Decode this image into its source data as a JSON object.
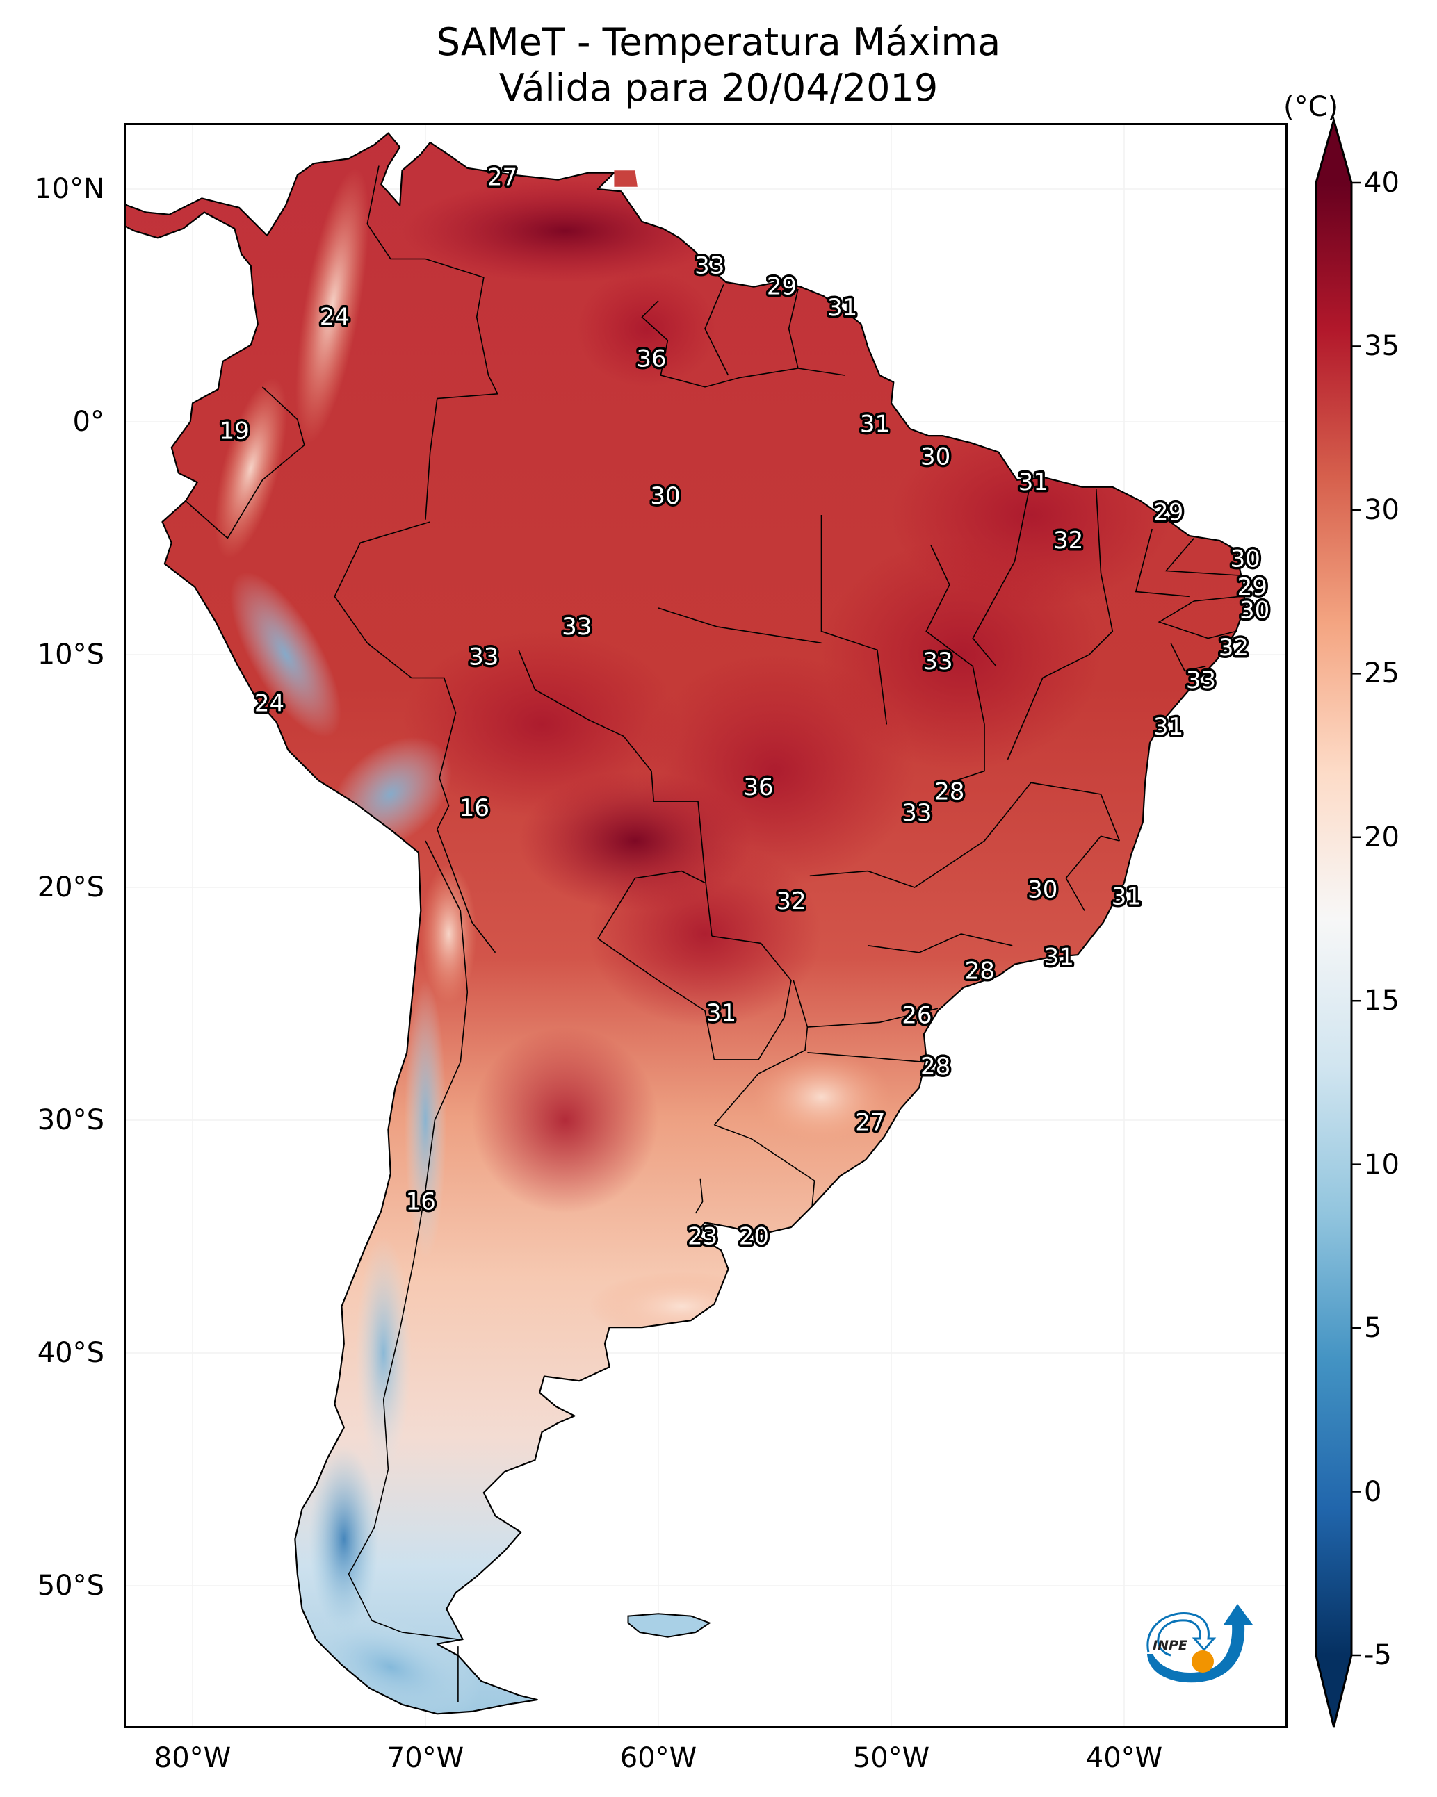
{
  "title": {
    "line1": "SAMeT - Temperatura Máxima",
    "line2": "Válida para 20/04/2019"
  },
  "map": {
    "projection": "PlateCarree",
    "extent": {
      "lon_min": -83,
      "lon_max": -33,
      "lat_min": -56,
      "lat_max": 13
    },
    "y_ticks": [
      {
        "lat": 10,
        "label": "10°N"
      },
      {
        "lat": 0,
        "label": "0°"
      },
      {
        "lat": -10,
        "label": "10°S"
      },
      {
        "lat": -20,
        "label": "20°S"
      },
      {
        "lat": -30,
        "label": "30°S"
      },
      {
        "lat": -40,
        "label": "40°S"
      },
      {
        "lat": -50,
        "label": "50°S"
      }
    ],
    "x_ticks": [
      {
        "lon": -80,
        "label": "80°W"
      },
      {
        "lon": -70,
        "label": "70°W"
      },
      {
        "lon": -60,
        "label": "60°W"
      },
      {
        "lon": -50,
        "label": "50°W"
      },
      {
        "lon": -40,
        "label": "40°W"
      }
    ],
    "contour_labels": [
      {
        "value": "27",
        "lon": -66.7,
        "lat": 10.5
      },
      {
        "value": "33",
        "lon": -57.8,
        "lat": 6.7
      },
      {
        "value": "29",
        "lon": -54.7,
        "lat": 5.8
      },
      {
        "value": "31",
        "lon": -52.1,
        "lat": 4.9
      },
      {
        "value": "24",
        "lon": -73.9,
        "lat": 4.5
      },
      {
        "value": "36",
        "lon": -60.3,
        "lat": 2.7
      },
      {
        "value": "19",
        "lon": -78.2,
        "lat": -0.4
      },
      {
        "value": "31",
        "lon": -50.7,
        "lat": -0.1
      },
      {
        "value": "30",
        "lon": -48.1,
        "lat": -1.5
      },
      {
        "value": "30",
        "lon": -59.7,
        "lat": -3.2
      },
      {
        "value": "31",
        "lon": -43.9,
        "lat": -2.6
      },
      {
        "value": "29",
        "lon": -38.1,
        "lat": -3.9
      },
      {
        "value": "32",
        "lon": -42.4,
        "lat": -5.1
      },
      {
        "value": "30",
        "lon": -34.8,
        "lat": -5.9
      },
      {
        "value": "29",
        "lon": -34.5,
        "lat": -7.1
      },
      {
        "value": "30",
        "lon": -34.4,
        "lat": -8.1
      },
      {
        "value": "33",
        "lon": -63.5,
        "lat": -8.8
      },
      {
        "value": "32",
        "lon": -35.3,
        "lat": -9.7
      },
      {
        "value": "33",
        "lon": -67.5,
        "lat": -10.1
      },
      {
        "value": "33",
        "lon": -48.0,
        "lat": -10.3
      },
      {
        "value": "33",
        "lon": -36.7,
        "lat": -11.1
      },
      {
        "value": "24",
        "lon": -76.7,
        "lat": -12.1
      },
      {
        "value": "31",
        "lon": -38.1,
        "lat": -13.1
      },
      {
        "value": "36",
        "lon": -55.7,
        "lat": -15.7
      },
      {
        "value": "28",
        "lon": -47.5,
        "lat": -15.9
      },
      {
        "value": "16",
        "lon": -67.9,
        "lat": -16.6
      },
      {
        "value": "33",
        "lon": -48.9,
        "lat": -16.8
      },
      {
        "value": "30",
        "lon": -43.5,
        "lat": -20.1
      },
      {
        "value": "31",
        "lon": -39.9,
        "lat": -20.4
      },
      {
        "value": "32",
        "lon": -54.3,
        "lat": -20.6
      },
      {
        "value": "31",
        "lon": -42.8,
        "lat": -23.0
      },
      {
        "value": "28",
        "lon": -46.2,
        "lat": -23.6
      },
      {
        "value": "26",
        "lon": -48.9,
        "lat": -25.5
      },
      {
        "value": "31",
        "lon": -57.3,
        "lat": -25.4
      },
      {
        "value": "28",
        "lon": -48.1,
        "lat": -27.7
      },
      {
        "value": "27",
        "lon": -50.9,
        "lat": -30.1
      },
      {
        "value": "16",
        "lon": -70.2,
        "lat": -33.5
      },
      {
        "value": "23",
        "lon": -58.1,
        "lat": -35.0
      },
      {
        "value": "20",
        "lon": -55.9,
        "lat": -35.0
      }
    ]
  },
  "colorbar": {
    "unit_label": "(°C)",
    "min": -5,
    "max": 40,
    "extend": "both",
    "colormap": "RdBu_r",
    "ticks": [
      {
        "value": 40,
        "label": "40"
      },
      {
        "value": 35,
        "label": "35"
      },
      {
        "value": 30,
        "label": "30"
      },
      {
        "value": 25,
        "label": "25"
      },
      {
        "value": 20,
        "label": "20"
      },
      {
        "value": 15,
        "label": "15"
      },
      {
        "value": 10,
        "label": "10"
      },
      {
        "value": 5,
        "label": "5"
      },
      {
        "value": 0,
        "label": "0"
      },
      {
        "value": -5,
        "label": "-5"
      }
    ],
    "color_stops": [
      "#053061",
      "#2166ac",
      "#4393c3",
      "#92c5de",
      "#d1e5f0",
      "#f7f7f7",
      "#fddbc7",
      "#f4a582",
      "#d6604d",
      "#b2182b",
      "#67001f"
    ]
  },
  "logo": {
    "text": "INPE",
    "colors": {
      "blue": "#0a74b8",
      "orange": "#f29400"
    }
  }
}
